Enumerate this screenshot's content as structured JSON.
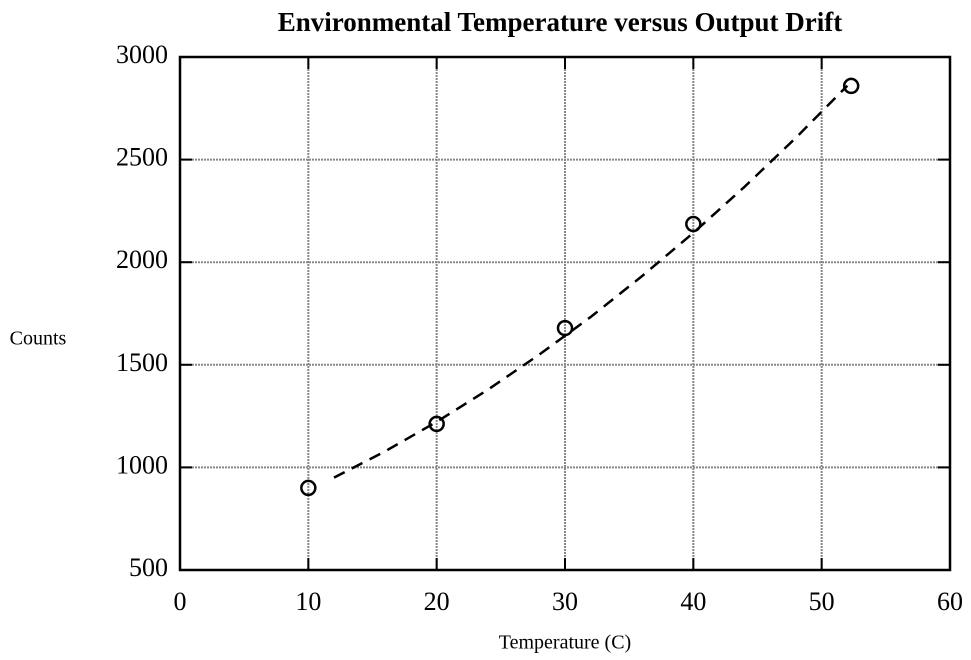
{
  "chart_data": {
    "type": "scatter",
    "title": "Environmental Temperature versus Output Drift",
    "x_label": "Temperature (C)",
    "y_label": "Counts",
    "xlim": [
      0,
      60
    ],
    "xticks": [
      0,
      10,
      20,
      30,
      40,
      50,
      60
    ],
    "ylim": [
      500,
      3000
    ],
    "yticks": [
      500,
      1000,
      1500,
      2000,
      2500,
      3000
    ],
    "grid": true,
    "series": [
      {
        "color": "#000000",
        "marker": "circle",
        "x": [
          10,
          20,
          30,
          40,
          52.3
        ],
        "values": [
          900,
          1212,
          1679,
          2186,
          2859
        ]
      },
      {
        "color": "#000000",
        "line_style": "dashed",
        "x": [
          12,
          16,
          20,
          24,
          28,
          32,
          36,
          40,
          44,
          48,
          52
        ],
        "values": [
          950,
          1079,
          1222,
          1379,
          1550,
          1733,
          1932,
          2143,
          2368,
          2607,
          2860
        ]
      }
    ]
  }
}
